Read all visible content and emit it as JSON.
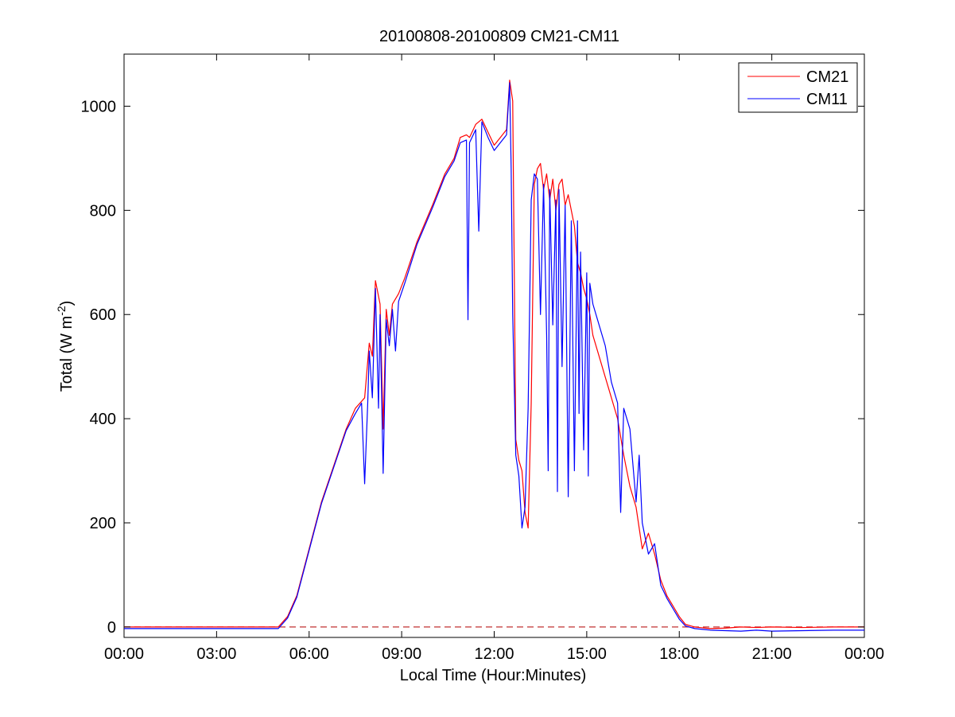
{
  "chart_data": {
    "type": "line",
    "title": "20100808-20100809 CM21-CM11",
    "xlabel": "Local Time (Hour:Minutes)",
    "ylabel": {
      "main": "Total (W m",
      "superscript": "-2",
      "close": ")"
    },
    "x_unit": "hours",
    "xlim": [
      0,
      24
    ],
    "ylim": [
      -20,
      1100
    ],
    "xticks": [
      0,
      3,
      6,
      9,
      12,
      15,
      18,
      21,
      24
    ],
    "xtick_labels": [
      "00:00",
      "03:00",
      "06:00",
      "09:00",
      "12:00",
      "15:00",
      "18:00",
      "21:00",
      "00:00"
    ],
    "yticks": [
      0,
      200,
      400,
      600,
      800,
      1000
    ],
    "ytick_labels": [
      "0",
      "200",
      "400",
      "600",
      "800",
      "1000"
    ],
    "grid": false,
    "legend": {
      "position": "top-right",
      "entries": [
        "CM21",
        "CM11"
      ]
    },
    "reference_line": {
      "y": 0,
      "style": "dashed",
      "color": "#c03030"
    },
    "series": [
      {
        "name": "CM21",
        "color": "#ff0000",
        "x": [
          0,
          5.0,
          5.3,
          5.6,
          6.0,
          6.4,
          6.8,
          7.2,
          7.5,
          7.8,
          7.95,
          8.05,
          8.15,
          8.3,
          8.4,
          8.5,
          8.6,
          8.7,
          8.9,
          9.1,
          9.5,
          10.0,
          10.4,
          10.7,
          10.9,
          11.1,
          11.2,
          11.4,
          11.6,
          11.8,
          12.0,
          12.2,
          12.4,
          12.5,
          12.6,
          12.7,
          12.8,
          12.9,
          13.0,
          13.1,
          13.2,
          13.3,
          13.4,
          13.5,
          13.6,
          13.7,
          13.8,
          13.9,
          14.0,
          14.1,
          14.2,
          14.3,
          14.4,
          14.5,
          14.6,
          14.7,
          14.8,
          14.9,
          15.0,
          15.1,
          15.2,
          15.4,
          15.6,
          15.8,
          16.0,
          16.2,
          16.4,
          16.6,
          16.8,
          17.0,
          17.2,
          17.4,
          17.6,
          17.8,
          18.0,
          18.2,
          18.5,
          19.0,
          19.5,
          20.0,
          20.5,
          21.0,
          22.0,
          23.0,
          24.0
        ],
        "values": [
          0,
          0,
          20,
          60,
          150,
          240,
          310,
          380,
          420,
          440,
          545,
          520,
          665,
          620,
          380,
          610,
          560,
          620,
          640,
          670,
          740,
          810,
          870,
          900,
          940,
          945,
          940,
          965,
          975,
          950,
          925,
          940,
          955,
          1050,
          1010,
          360,
          320,
          300,
          220,
          190,
          430,
          850,
          880,
          890,
          840,
          870,
          820,
          860,
          800,
          850,
          860,
          810,
          830,
          800,
          770,
          700,
          680,
          650,
          630,
          600,
          560,
          520,
          480,
          440,
          400,
          330,
          270,
          230,
          150,
          180,
          140,
          90,
          60,
          40,
          20,
          5,
          0,
          -3,
          -2,
          0,
          -1,
          0,
          -1,
          0,
          0
        ]
      },
      {
        "name": "CM11",
        "color": "#0000ff",
        "x": [
          0,
          5.0,
          5.3,
          5.6,
          6.0,
          6.4,
          6.8,
          7.2,
          7.5,
          7.7,
          7.8,
          7.9,
          7.95,
          8.05,
          8.15,
          8.25,
          8.3,
          8.4,
          8.5,
          8.6,
          8.7,
          8.8,
          8.9,
          9.1,
          9.5,
          10.0,
          10.4,
          10.7,
          10.9,
          11.1,
          11.15,
          11.2,
          11.4,
          11.5,
          11.6,
          11.8,
          12.0,
          12.2,
          12.4,
          12.5,
          12.55,
          12.6,
          12.7,
          12.8,
          12.9,
          13.0,
          13.1,
          13.2,
          13.3,
          13.4,
          13.5,
          13.6,
          13.7,
          13.75,
          13.8,
          13.9,
          14.0,
          14.05,
          14.1,
          14.2,
          14.3,
          14.4,
          14.5,
          14.6,
          14.7,
          14.75,
          14.8,
          14.9,
          15.0,
          15.05,
          15.1,
          15.2,
          15.4,
          15.6,
          15.8,
          16.0,
          16.1,
          16.2,
          16.4,
          16.6,
          16.7,
          16.8,
          17.0,
          17.2,
          17.4,
          17.6,
          17.8,
          18.0,
          18.2,
          18.5,
          19.0,
          19.5,
          20.0,
          20.5,
          21.0,
          22.0,
          23.0,
          24.0
        ],
        "values": [
          -3,
          -3,
          17,
          57,
          147,
          237,
          307,
          377,
          410,
          430,
          275,
          430,
          530,
          440,
          650,
          420,
          600,
          295,
          590,
          540,
          610,
          530,
          625,
          660,
          735,
          805,
          865,
          895,
          930,
          935,
          590,
          930,
          955,
          760,
          970,
          940,
          915,
          930,
          945,
          1045,
          880,
          600,
          330,
          290,
          190,
          230,
          420,
          820,
          870,
          860,
          600,
          850,
          560,
          300,
          840,
          580,
          820,
          260,
          840,
          500,
          810,
          250,
          780,
          300,
          780,
          410,
          720,
          340,
          680,
          290,
          660,
          620,
          580,
          540,
          470,
          430,
          220,
          420,
          380,
          240,
          330,
          200,
          140,
          160,
          80,
          55,
          35,
          15,
          2,
          -3,
          -6,
          -7,
          -8,
          -6,
          -8,
          -7,
          -6,
          -6
        ]
      }
    ]
  }
}
